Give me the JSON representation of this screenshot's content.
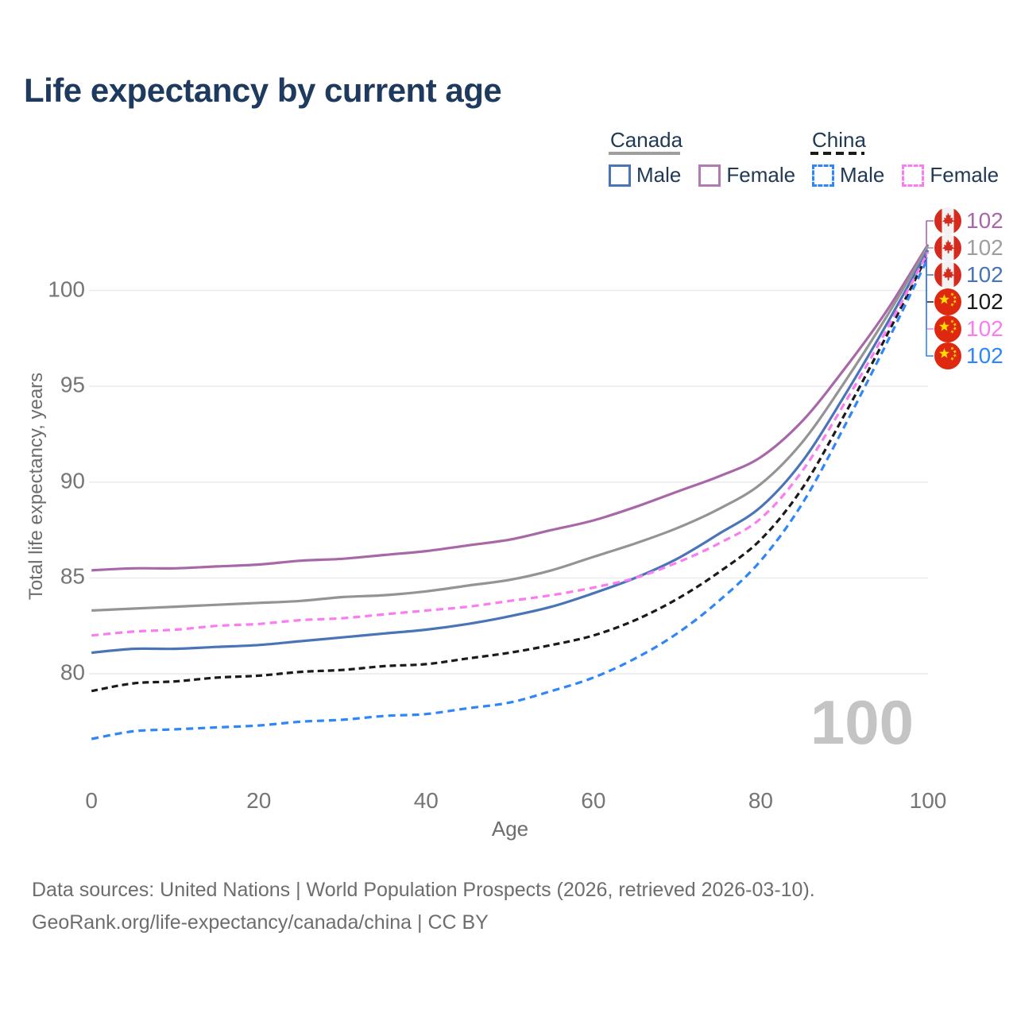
{
  "title": "Life expectancy by current age",
  "watermark": "100",
  "legend": {
    "groups": [
      {
        "title": "Canada",
        "line_style": "solid",
        "underline_color": "#9e9e9e",
        "items": [
          {
            "label": "Male",
            "color": "#4a74b8"
          },
          {
            "label": "Female",
            "color": "#b279b2"
          }
        ]
      },
      {
        "title": "China",
        "line_style": "dashed",
        "underline_color": "#1a1a1a",
        "items": [
          {
            "label": "Male",
            "color": "#2e86f8"
          },
          {
            "label": "Female",
            "color": "#f97cf0"
          }
        ]
      }
    ]
  },
  "chart_data": {
    "type": "line",
    "title": "Life expectancy by current age",
    "xlabel": "Age",
    "ylabel": "Total life expectancy, years",
    "x_ticks": [
      0,
      20,
      40,
      60,
      80,
      100
    ],
    "y_ticks": [
      80,
      85,
      90,
      95,
      100
    ],
    "xlim": [
      0,
      100
    ],
    "ylim": [
      76,
      103.5
    ],
    "grid": "horizontal",
    "legend_position": "top-right",
    "x": [
      0,
      5,
      10,
      15,
      20,
      25,
      30,
      35,
      40,
      45,
      50,
      55,
      60,
      65,
      70,
      75,
      80,
      85,
      90,
      95,
      100
    ],
    "series": [
      {
        "name": "Canada Female",
        "country": "canada",
        "sex": "female",
        "color": "#a868a8",
        "dash": false,
        "values": [
          85.4,
          85.5,
          85.5,
          85.6,
          85.7,
          85.9,
          86.0,
          86.2,
          86.4,
          86.7,
          87.0,
          87.5,
          88.0,
          88.7,
          89.5,
          90.3,
          91.3,
          93.2,
          95.9,
          98.9,
          102.4
        ]
      },
      {
        "name": "Canada Both sexes",
        "country": "canada",
        "sex": "combined",
        "color": "#949494",
        "dash": false,
        "values": [
          83.3,
          83.4,
          83.5,
          83.6,
          83.7,
          83.8,
          84.0,
          84.1,
          84.3,
          84.6,
          84.9,
          85.4,
          86.1,
          86.8,
          87.6,
          88.6,
          89.9,
          92.1,
          95.2,
          98.6,
          102.3
        ]
      },
      {
        "name": "Canada Male",
        "country": "canada",
        "sex": "male",
        "color": "#4a74b8",
        "dash": false,
        "values": [
          81.1,
          81.3,
          81.3,
          81.4,
          81.5,
          81.7,
          81.9,
          82.1,
          82.3,
          82.6,
          83.0,
          83.5,
          84.2,
          85.0,
          86.0,
          87.3,
          88.7,
          91.1,
          94.5,
          98.2,
          102.1
        ]
      },
      {
        "name": "China Both sexes",
        "country": "china",
        "sex": "combined",
        "color": "#1a1a1a",
        "dash": true,
        "dash_pattern": "8 5",
        "values": [
          79.1,
          79.5,
          79.6,
          79.8,
          79.9,
          80.1,
          80.2,
          80.4,
          80.5,
          80.8,
          81.1,
          81.5,
          82.0,
          82.8,
          83.9,
          85.3,
          87.0,
          89.7,
          93.5,
          97.6,
          101.9
        ]
      },
      {
        "name": "China Female",
        "country": "china",
        "sex": "female",
        "color": "#f97cf0",
        "dash": true,
        "dash_pattern": "9 6",
        "values": [
          82.0,
          82.2,
          82.3,
          82.5,
          82.6,
          82.8,
          82.9,
          83.1,
          83.3,
          83.5,
          83.8,
          84.1,
          84.5,
          85.0,
          85.8,
          86.8,
          88.1,
          90.6,
          94.1,
          97.9,
          102.0
        ]
      },
      {
        "name": "China Male",
        "country": "china",
        "sex": "male",
        "color": "#2e86f8",
        "dash": true,
        "dash_pattern": "9 6",
        "values": [
          76.6,
          77.0,
          77.1,
          77.2,
          77.3,
          77.5,
          77.6,
          77.8,
          77.9,
          78.2,
          78.5,
          79.1,
          79.8,
          80.8,
          82.1,
          83.8,
          85.9,
          88.9,
          92.9,
          97.2,
          101.7
        ]
      }
    ],
    "end_labels": [
      {
        "value": "102",
        "series_index": 0,
        "country": "canada",
        "color": "#a868a8"
      },
      {
        "value": "102",
        "series_index": 1,
        "country": "canada",
        "color": "#9e9e9e"
      },
      {
        "value": "102",
        "series_index": 2,
        "country": "canada",
        "color": "#4a74b8"
      },
      {
        "value": "102",
        "series_index": 3,
        "country": "china",
        "color": "#1a1a1a"
      },
      {
        "value": "102",
        "series_index": 4,
        "country": "china",
        "color": "#f97cf0"
      },
      {
        "value": "102",
        "series_index": 5,
        "country": "china",
        "color": "#2e86f8"
      }
    ]
  },
  "footer": {
    "line1": "Data sources: United Nations | World Population Prospects (2026, retrieved 2026-03-10).",
    "line2": "GeoRank.org/life-expectancy/canada/china | CC BY"
  }
}
